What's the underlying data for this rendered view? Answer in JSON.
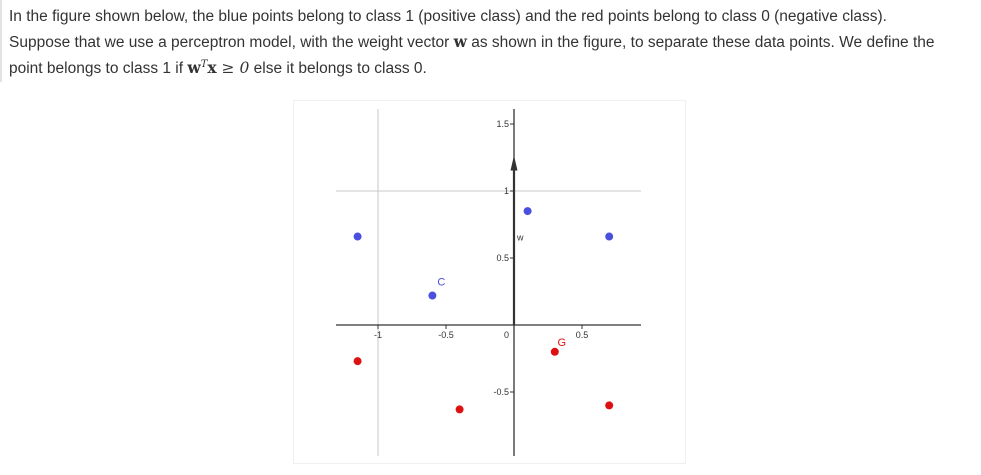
{
  "question": {
    "sentence1": "In the figure shown below, the blue points belong to class 1 (positive class) and the red points belong to class 0 (negative class).",
    "sentence2_a": "Suppose that we use a perceptron model, with the weight vector ",
    "sentence2_w": "w",
    "sentence2_b": " as shown in the figure, to separate these data points. We define the",
    "sentence3_a": "point belongs to class 1 if ",
    "sentence3_w": "w",
    "sentence3_t": "T",
    "sentence3_x": "x",
    "sentence3_cmp": " ≥ 0",
    "sentence3_b": " else it belongs to class 0."
  },
  "colors": {
    "blue_point": "#4b4fe0",
    "red_point": "#dd1111",
    "axis": "#333333",
    "grid": "#c8c8c8",
    "label_blue": "#4b4fe0",
    "label_red": "#dd1111"
  },
  "chart_data": {
    "type": "scatter",
    "xlim": [
      -1.25,
      0.85
    ],
    "ylim": [
      -0.9,
      1.6
    ],
    "x_ticks": [
      {
        "value": -1,
        "label": "-1"
      },
      {
        "value": -0.5,
        "label": "-0.5"
      },
      {
        "value": 0.5,
        "label": "0.5"
      }
    ],
    "origin_label": "0",
    "y_ticks": [
      {
        "value": 1.5,
        "label": "1.5"
      },
      {
        "value": 1,
        "label": "1"
      },
      {
        "value": 0.5,
        "label": "0.5"
      },
      {
        "value": -0.5,
        "label": "-0.5"
      }
    ],
    "gridlines": {
      "x": [
        -1
      ],
      "y": [
        1
      ]
    },
    "weight_vector": {
      "from": [
        0,
        0
      ],
      "to": [
        0,
        1.22
      ],
      "label": "w"
    },
    "series": [
      {
        "name": "class 1",
        "color": "#4b4fe0",
        "points": [
          {
            "x": -1.15,
            "y": 0.66,
            "label": ""
          },
          {
            "x": -0.6,
            "y": 0.22,
            "label": "C"
          },
          {
            "x": 0.1,
            "y": 0.85,
            "label": ""
          },
          {
            "x": 0.7,
            "y": 0.66,
            "label": ""
          }
        ]
      },
      {
        "name": "class 0",
        "color": "#dd1111",
        "points": [
          {
            "x": -1.15,
            "y": -0.27,
            "label": ""
          },
          {
            "x": -0.4,
            "y": -0.63,
            "label": ""
          },
          {
            "x": 0.3,
            "y": -0.2,
            "label": "G"
          },
          {
            "x": 0.7,
            "y": -0.6,
            "label": ""
          }
        ]
      }
    ]
  }
}
